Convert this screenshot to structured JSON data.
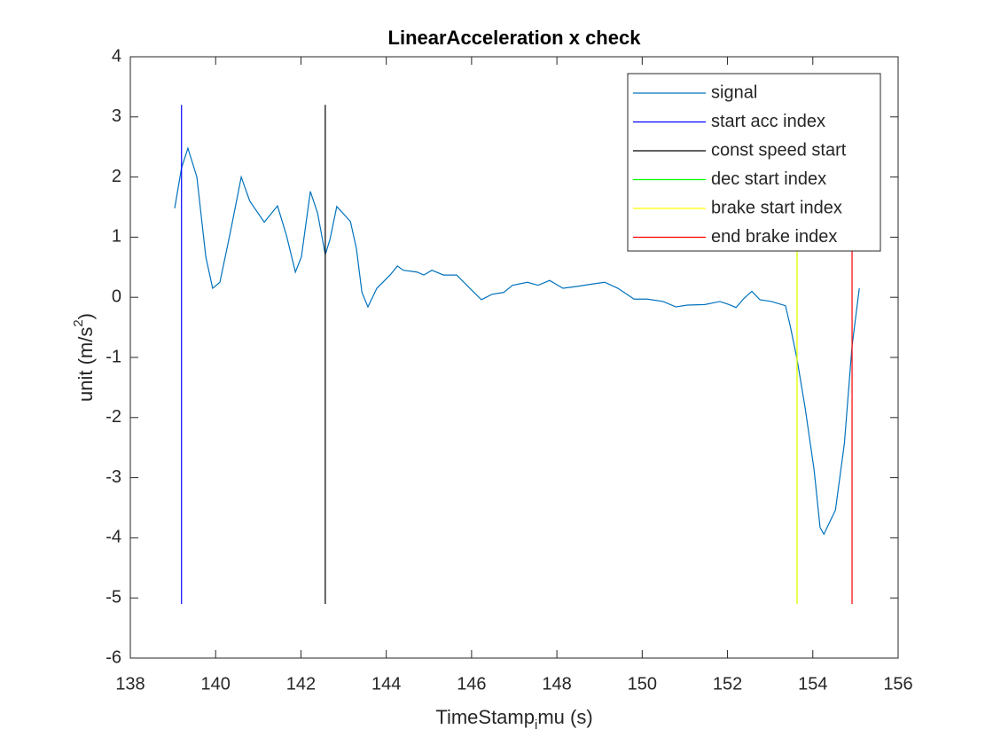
{
  "chart_data": {
    "type": "line",
    "title": "LinearAcceleration x check",
    "xlabel": [
      "TimeStamp",
      "i",
      "mu (s)"
    ],
    "ylabel": [
      "unit (m/s",
      "2",
      ")"
    ],
    "xlim": [
      138,
      156
    ],
    "xticks": [
      138,
      140,
      142,
      144,
      146,
      148,
      150,
      152,
      154,
      156
    ],
    "ylim": [
      -6,
      4
    ],
    "yticks": [
      -6,
      -5,
      -4,
      -3,
      -2,
      -1,
      0,
      1,
      2,
      3,
      4
    ],
    "legend": "northeast",
    "series": [
      {
        "name": "signal",
        "color": "#0072bd",
        "x": [
          139.04,
          139.2,
          139.35,
          139.56,
          139.77,
          139.93,
          140.1,
          140.35,
          140.6,
          140.8,
          141.14,
          141.45,
          141.66,
          141.87,
          142.01,
          142.22,
          142.39,
          142.57,
          142.68,
          142.84,
          143.16,
          143.3,
          143.43,
          143.57,
          143.78,
          144.09,
          144.26,
          144.4,
          144.72,
          144.88,
          145.07,
          145.34,
          145.65,
          145.96,
          146.23,
          146.48,
          146.75,
          146.96,
          147.31,
          147.56,
          147.83,
          148.14,
          148.46,
          148.83,
          149.12,
          149.43,
          149.81,
          150.12,
          150.49,
          150.79,
          151.06,
          151.47,
          151.82,
          152.03,
          152.2,
          152.37,
          152.57,
          152.76,
          153.03,
          153.36,
          153.48,
          153.63,
          153.82,
          154.03,
          154.17,
          154.26,
          154.38,
          154.53,
          154.74,
          154.92,
          155.09
        ],
        "values": [
          1.48,
          2.15,
          2.48,
          2.0,
          0.67,
          0.15,
          0.25,
          1.1,
          2.0,
          1.6,
          1.25,
          1.52,
          1.03,
          0.42,
          0.67,
          1.76,
          1.4,
          0.71,
          0.96,
          1.51,
          1.26,
          0.81,
          0.08,
          -0.16,
          0.15,
          0.37,
          0.52,
          0.45,
          0.42,
          0.37,
          0.45,
          0.37,
          0.37,
          0.15,
          -0.04,
          0.05,
          0.08,
          0.2,
          0.25,
          0.2,
          0.28,
          0.15,
          0.18,
          0.22,
          0.25,
          0.15,
          -0.03,
          -0.03,
          -0.07,
          -0.16,
          -0.13,
          -0.12,
          -0.07,
          -0.12,
          -0.17,
          -0.03,
          0.1,
          -0.04,
          -0.07,
          -0.14,
          -0.51,
          -1.03,
          -1.84,
          -2.87,
          -3.83,
          -3.94,
          -3.76,
          -3.54,
          -2.43,
          -0.81,
          0.15
        ]
      },
      {
        "name": "start acc index",
        "color": "#0000ff",
        "x": [
          139.2,
          139.2
        ],
        "values": [
          3.2,
          -5.1
        ]
      },
      {
        "name": "const speed start",
        "color": "#000000",
        "x": [
          142.57,
          142.57
        ],
        "values": [
          3.2,
          -5.1
        ]
      },
      {
        "name": "dec start index",
        "color": "#00ff00",
        "x": [
          153.63,
          153.63
        ],
        "values": [
          3.2,
          -5.1
        ]
      },
      {
        "name": "brake start index",
        "color": "#ffff00",
        "x": [
          153.63,
          153.63
        ],
        "values": [
          3.2,
          -5.1
        ]
      },
      {
        "name": "end brake index",
        "color": "#ff0000",
        "x": [
          154.92,
          154.92
        ],
        "values": [
          3.2,
          -5.1
        ]
      }
    ]
  }
}
